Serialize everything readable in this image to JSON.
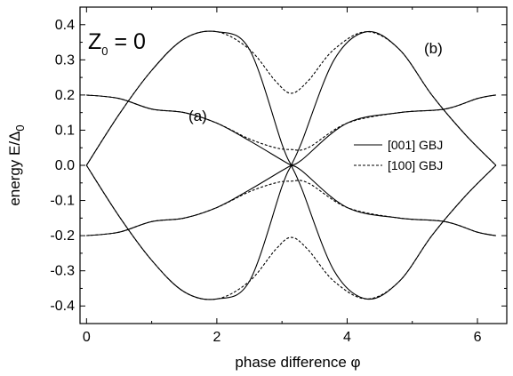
{
  "chart_data": {
    "type": "line",
    "title": "",
    "panel_label": "Z",
    "panel_label_sub": "0",
    "panel_label_rest": " = 0",
    "xlabel": "phase difference φ",
    "ylabel_main": "energy  E/Δ",
    "ylabel_sub": "0",
    "xlim": [
      -0.1,
      6.45
    ],
    "ylim": [
      -0.45,
      0.45
    ],
    "x_ticks": [
      "0",
      "2",
      "4",
      "6"
    ],
    "y_ticks": [
      "-0.4",
      "-0.3",
      "-0.2",
      "-0.1",
      "0.0",
      "0.1",
      "0.2",
      "0.3",
      "0.4"
    ],
    "grid": false,
    "legend_position": "right-middle",
    "annotations": {
      "a": "(a)",
      "b": "(b)"
    },
    "series": [
      {
        "name": "[001] GBJ",
        "style": "solid",
        "curves": [
          {
            "x": [
              0,
              0.5,
              1.0,
              1.5,
              2.0,
              2.5,
              3.0,
              3.1416,
              3.3,
              3.8,
              4.3,
              4.8,
              5.3,
              5.8,
              6.2832
            ],
            "y": [
              0.0,
              0.145,
              0.27,
              0.36,
              0.38,
              0.33,
              0.06,
              0.0,
              -0.065,
              -0.3,
              -0.38,
              -0.33,
              -0.2,
              -0.09,
              0.0
            ]
          },
          {
            "x": [
              0,
              0.5,
              1.0,
              1.5,
              2.0,
              2.5,
              3.0,
              3.1416,
              3.3,
              3.8,
              4.3,
              4.8,
              5.3,
              5.8,
              6.2832
            ],
            "y": [
              0.0,
              -0.145,
              -0.27,
              -0.36,
              -0.38,
              -0.33,
              -0.06,
              0.0,
              0.065,
              0.3,
              0.38,
              0.33,
              0.2,
              0.09,
              0.0
            ]
          },
          {
            "x": [
              0,
              0.5,
              1.0,
              1.5,
              2.0,
              2.5,
              3.0,
              3.1416,
              3.3,
              4.0,
              4.8,
              5.5,
              6.0,
              6.2832
            ],
            "y": [
              0.2,
              0.19,
              0.16,
              0.15,
              0.12,
              0.07,
              0.015,
              0.0,
              -0.015,
              -0.12,
              -0.15,
              -0.16,
              -0.19,
              -0.2
            ]
          },
          {
            "x": [
              0,
              0.5,
              1.0,
              1.5,
              2.0,
              2.5,
              3.0,
              3.1416,
              3.3,
              4.0,
              4.8,
              5.5,
              6.0,
              6.2832
            ],
            "y": [
              -0.2,
              -0.19,
              -0.16,
              -0.15,
              -0.12,
              -0.07,
              -0.015,
              0.0,
              0.015,
              0.12,
              0.15,
              0.16,
              0.19,
              0.2
            ]
          }
        ]
      },
      {
        "name": "[100] GBJ",
        "style": "dashed",
        "curves": [
          {
            "x": [
              0,
              0.5,
              1.0,
              1.5,
              2.0,
              2.5,
              2.9,
              3.1416,
              3.4,
              3.8,
              4.3,
              4.8,
              5.3,
              5.8,
              6.2832
            ],
            "y": [
              0.0,
              0.145,
              0.27,
              0.36,
              0.38,
              0.33,
              0.24,
              0.205,
              0.24,
              0.33,
              0.38,
              0.33,
              0.2,
              0.09,
              0.0
            ]
          },
          {
            "x": [
              0,
              0.5,
              1.0,
              1.5,
              2.0,
              2.5,
              2.9,
              3.1416,
              3.4,
              3.8,
              4.3,
              4.8,
              5.3,
              5.8,
              6.2832
            ],
            "y": [
              0.0,
              -0.145,
              -0.27,
              -0.36,
              -0.38,
              -0.33,
              -0.24,
              -0.205,
              -0.24,
              -0.33,
              -0.38,
              -0.33,
              -0.2,
              -0.09,
              0.0
            ]
          },
          {
            "x": [
              0,
              0.5,
              1.0,
              1.5,
              2.0,
              2.5,
              2.9,
              3.1416,
              3.4,
              4.0,
              4.8,
              5.5,
              6.0,
              6.2832
            ],
            "y": [
              0.2,
              0.19,
              0.16,
              0.15,
              0.12,
              0.075,
              0.05,
              0.045,
              0.05,
              0.12,
              0.15,
              0.16,
              0.19,
              0.2
            ]
          },
          {
            "x": [
              0,
              0.5,
              1.0,
              1.5,
              2.0,
              2.5,
              2.9,
              3.1416,
              3.4,
              4.0,
              4.8,
              5.5,
              6.0,
              6.2832
            ],
            "y": [
              -0.2,
              -0.19,
              -0.16,
              -0.15,
              -0.12,
              -0.075,
              -0.05,
              -0.045,
              -0.05,
              -0.12,
              -0.15,
              -0.16,
              -0.19,
              -0.2
            ]
          }
        ]
      }
    ]
  }
}
